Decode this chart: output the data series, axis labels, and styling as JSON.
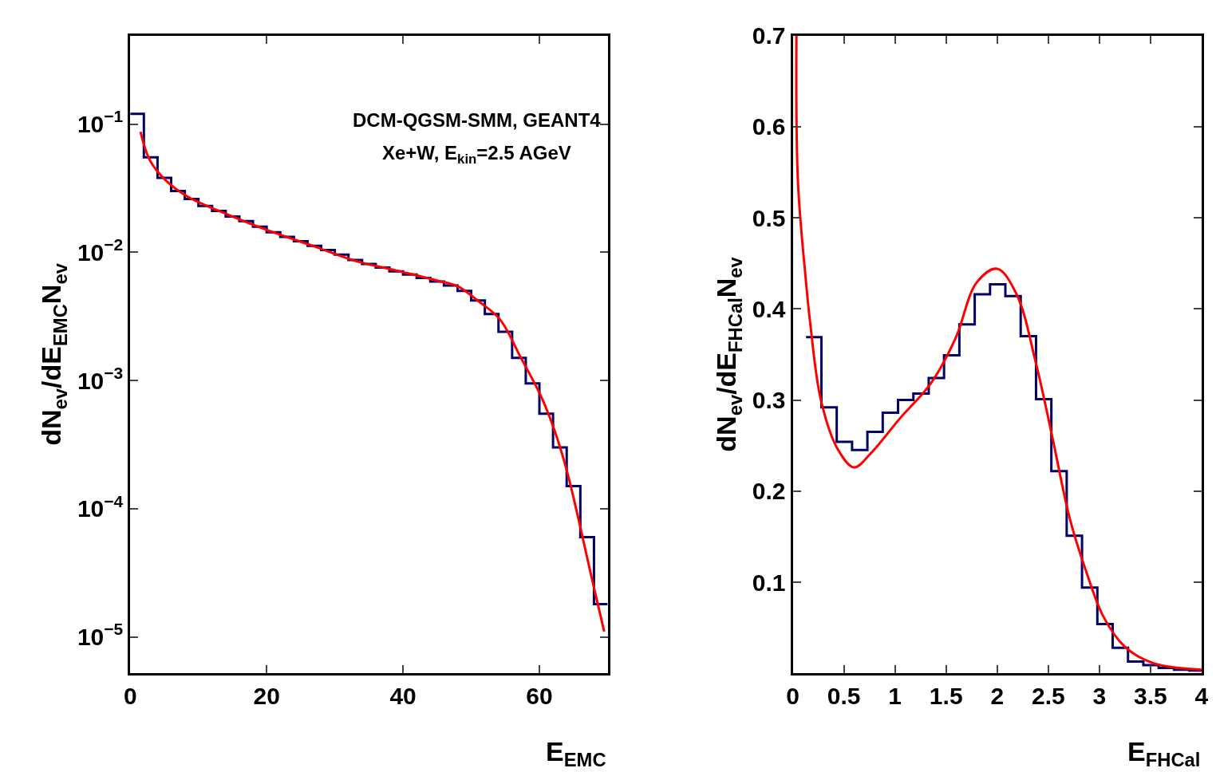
{
  "chart_data": [
    {
      "type": "histogram",
      "xlabel": "E$_{EMC}$",
      "ylabel": "dN$_{ev}$/dE$_{EMC}$N$_{ev}$",
      "color": "#000066",
      "annotations": [
        "DCM-QGSM-SMM, GEANT4",
        "Xe+W, E$_{kin}$=2.5 AGeV"
      ],
      "bins": [
        0,
        2,
        4,
        6,
        8,
        10,
        12,
        14,
        16,
        18,
        20,
        22,
        24,
        26,
        28,
        30,
        32,
        34,
        36,
        38,
        40,
        42,
        44,
        46,
        48,
        50,
        52,
        54,
        56,
        58,
        60,
        62,
        64,
        66,
        68,
        70
      ],
      "values": [
        0.12,
        0.055,
        0.038,
        0.03,
        0.026,
        0.023,
        0.021,
        0.019,
        0.0175,
        0.0158,
        0.0143,
        0.0132,
        0.0122,
        0.0112,
        0.0104,
        0.0096,
        0.0087,
        0.0081,
        0.0076,
        0.0071,
        0.0067,
        0.0063,
        0.0059,
        0.0055,
        0.005,
        0.0042,
        0.0033,
        0.0024,
        0.0015,
        0.00095,
        0.00055,
        0.0003,
        0.00015,
        6e-05,
        1.8e-05
      ],
      "series": [
        {
          "type": "line",
          "color": "#ff0000",
          "x": [
            1.5,
            2.9,
            5.3,
            8.5,
            14.6,
            20.7,
            26.8,
            32.9,
            39.0,
            45.1,
            48.1,
            51.2,
            54.2,
            57.3,
            60.3,
            62.2,
            64.0,
            65.8,
            67.6,
            69.5
          ],
          "values": [
            0.087,
            0.052,
            0.036,
            0.027,
            0.0194,
            0.0145,
            0.0112,
            0.0086,
            0.0072,
            0.006,
            0.0054,
            0.0041,
            0.003,
            0.0015,
            0.00074,
            0.00041,
            0.0002,
            8e-05,
            3e-05,
            1.1e-05
          ]
        }
      ],
      "log": "y",
      "xlim": [
        0,
        70
      ],
      "ylim": [
        5.2e-06,
        0.49
      ],
      "xticks": [
        0,
        20,
        40,
        60
      ],
      "yticks": [
        {
          "value": 0.1,
          "label": "10$^{−1}$"
        },
        {
          "value": 0.01,
          "label": "10$^{−2}$"
        },
        {
          "value": 0.001,
          "label": "10$^{−3}$"
        },
        {
          "value": 0.0001,
          "label": "10$^{−4}$"
        },
        {
          "value": 1e-05,
          "label": "10$^{−5}$"
        }
      ],
      "tick_labels": true
    },
    {
      "type": "histogram",
      "xlabel": "E$_{FHCal}$",
      "ylabel": "dN$_{ev}$/dE$_{FHCal}$N$_{ev}$",
      "color": "#000066",
      "bins": [
        0.13,
        0.28,
        0.43,
        0.58,
        0.73,
        0.88,
        1.03,
        1.18,
        1.33,
        1.48,
        1.63,
        1.78,
        1.93,
        2.08,
        2.23,
        2.38,
        2.53,
        2.68,
        2.83,
        2.98,
        3.13,
        3.28,
        3.43,
        3.58,
        3.73,
        3.88,
        4.0
      ],
      "values": [
        0.369,
        0.292,
        0.254,
        0.245,
        0.265,
        0.286,
        0.3,
        0.307,
        0.324,
        0.349,
        0.383,
        0.416,
        0.427,
        0.414,
        0.37,
        0.301,
        0.222,
        0.151,
        0.094,
        0.054,
        0.028,
        0.013,
        0.009,
        0.006,
        0.004,
        0.003
      ],
      "series": [
        {
          "type": "line",
          "color": "#ff0000",
          "x": [
            0.036,
            0.05,
            0.13,
            0.17,
            0.275,
            0.44,
            0.6,
            0.76,
            1.05,
            1.35,
            1.59,
            1.8,
            2.0,
            2.19,
            2.38,
            2.54,
            2.71,
            2.87,
            3.04,
            3.25,
            3.53,
            4.0
          ],
          "values": [
            0.7,
            0.541,
            0.429,
            0.385,
            0.3,
            0.246,
            0.226,
            0.241,
            0.28,
            0.318,
            0.367,
            0.429,
            0.444,
            0.416,
            0.34,
            0.259,
            0.17,
            0.112,
            0.062,
            0.029,
            0.011,
            0.004
          ]
        }
      ],
      "xlim": [
        0,
        4
      ],
      "ylim": [
        0,
        0.7
      ],
      "xticks": [
        0,
        0.5,
        1,
        1.5,
        2,
        2.5,
        3,
        3.5,
        4
      ],
      "yticks": [
        0.1,
        0.2,
        0.3,
        0.4,
        0.5,
        0.6,
        0.7
      ]
    }
  ]
}
